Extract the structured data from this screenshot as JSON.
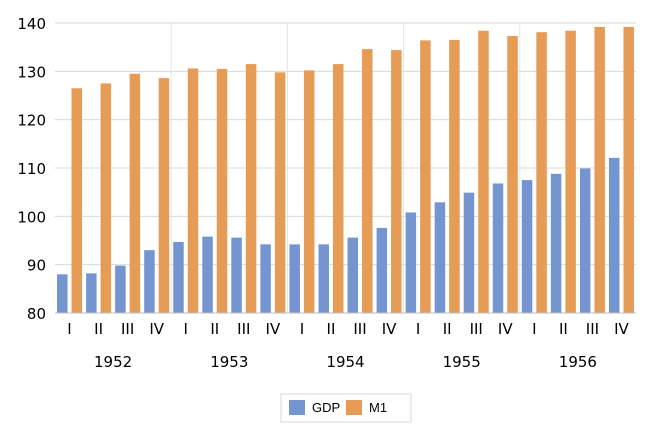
{
  "chart_data": {
    "type": "bar",
    "title": "",
    "xlabel": "",
    "ylabel": "",
    "ylim": [
      80,
      140
    ],
    "yticks": [
      80,
      90,
      100,
      110,
      120,
      130,
      140
    ],
    "grid": true,
    "legend_position": "bottom",
    "categories": [
      "I",
      "II",
      "III",
      "IV",
      "I",
      "II",
      "III",
      "IV",
      "I",
      "II",
      "III",
      "IV",
      "I",
      "II",
      "III",
      "IV",
      "I",
      "II",
      "III",
      "IV"
    ],
    "years": [
      "1952",
      "1953",
      "1954",
      "1955",
      "1956"
    ],
    "series": [
      {
        "name": "GDP",
        "color": "#7595d0",
        "values": [
          88.0,
          88.2,
          89.8,
          93.0,
          94.7,
          95.8,
          95.6,
          94.2,
          94.2,
          94.2,
          95.6,
          97.6,
          100.8,
          102.9,
          104.9,
          106.8,
          107.5,
          108.8,
          109.9,
          112.1
        ]
      },
      {
        "name": "M1",
        "color": "#e69c54",
        "values": [
          126.5,
          127.5,
          129.5,
          128.6,
          130.6,
          130.5,
          131.5,
          129.8,
          130.2,
          131.5,
          134.6,
          134.4,
          136.4,
          136.5,
          138.4,
          137.3,
          138.1,
          138.4,
          139.2,
          139.2
        ]
      }
    ]
  }
}
